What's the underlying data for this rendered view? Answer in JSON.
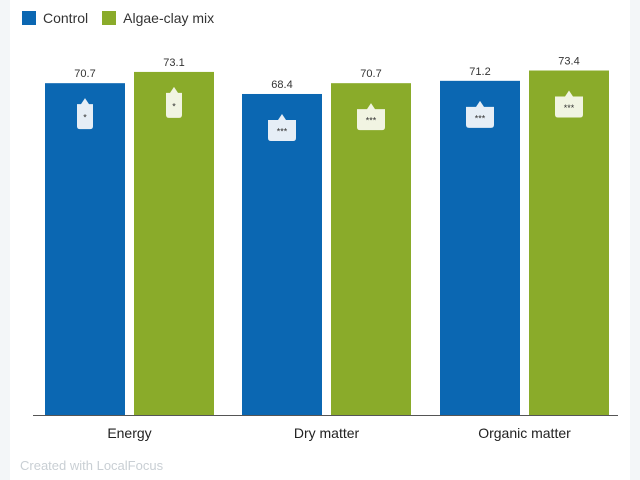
{
  "chart_data": {
    "type": "bar",
    "categories": [
      "Energy",
      "Dry matter",
      "Organic matter"
    ],
    "series": [
      {
        "name": "Control",
        "values": [
          70.7,
          68.4,
          71.2
        ],
        "color": "#0b67b2"
      },
      {
        "name": "Algae-clay mix",
        "values": [
          73.1,
          70.7,
          73.4
        ],
        "color": "#8aab2a"
      }
    ],
    "significance": [
      "*",
      "***",
      "***"
    ],
    "ylim": [
      0,
      75
    ],
    "grid": false,
    "legend_position": "top-left",
    "title": "",
    "xlabel": "",
    "ylabel": ""
  },
  "footer": {
    "credit": "Created with LocalFocus"
  }
}
